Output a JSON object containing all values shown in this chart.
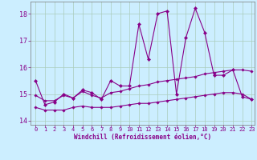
{
  "xlabel": "Windchill (Refroidissement éolien,°C)",
  "background_color": "#cceeff",
  "grid_color": "#aaccbb",
  "line_color": "#880088",
  "xlim": [
    -0.5,
    23.3
  ],
  "ylim": [
    13.85,
    18.45
  ],
  "xticks": [
    0,
    1,
    2,
    3,
    4,
    5,
    6,
    7,
    8,
    9,
    10,
    11,
    12,
    13,
    14,
    15,
    16,
    17,
    18,
    19,
    20,
    21,
    22,
    23
  ],
  "yticks": [
    14,
    15,
    16,
    17,
    18
  ],
  "line1_x": [
    0,
    1,
    2,
    3,
    4,
    5,
    6,
    7,
    8,
    9,
    10,
    11,
    12,
    13,
    14,
    15,
    16,
    17,
    18,
    19,
    20,
    21,
    22,
    23
  ],
  "line1_y": [
    15.5,
    14.6,
    14.7,
    15.0,
    14.85,
    15.15,
    15.05,
    14.8,
    15.5,
    15.3,
    15.3,
    17.6,
    16.3,
    18.0,
    18.1,
    15.0,
    17.1,
    18.2,
    17.3,
    15.7,
    15.7,
    15.9,
    14.9,
    14.8
  ],
  "line2_x": [
    0,
    1,
    2,
    3,
    4,
    5,
    6,
    7,
    8,
    9,
    10,
    11,
    12,
    13,
    14,
    15,
    16,
    17,
    18,
    19,
    20,
    21,
    22,
    23
  ],
  "line2_y": [
    14.95,
    14.75,
    14.75,
    14.95,
    14.85,
    15.1,
    14.95,
    14.85,
    15.05,
    15.1,
    15.2,
    15.3,
    15.35,
    15.45,
    15.5,
    15.55,
    15.6,
    15.65,
    15.75,
    15.8,
    15.85,
    15.9,
    15.9,
    15.85
  ],
  "line3_x": [
    0,
    1,
    2,
    3,
    4,
    5,
    6,
    7,
    8,
    9,
    10,
    11,
    12,
    13,
    14,
    15,
    16,
    17,
    18,
    19,
    20,
    21,
    22,
    23
  ],
  "line3_y": [
    14.5,
    14.4,
    14.4,
    14.4,
    14.5,
    14.55,
    14.5,
    14.5,
    14.5,
    14.55,
    14.6,
    14.65,
    14.65,
    14.7,
    14.75,
    14.8,
    14.85,
    14.9,
    14.95,
    15.0,
    15.05,
    15.05,
    15.0,
    14.8
  ]
}
